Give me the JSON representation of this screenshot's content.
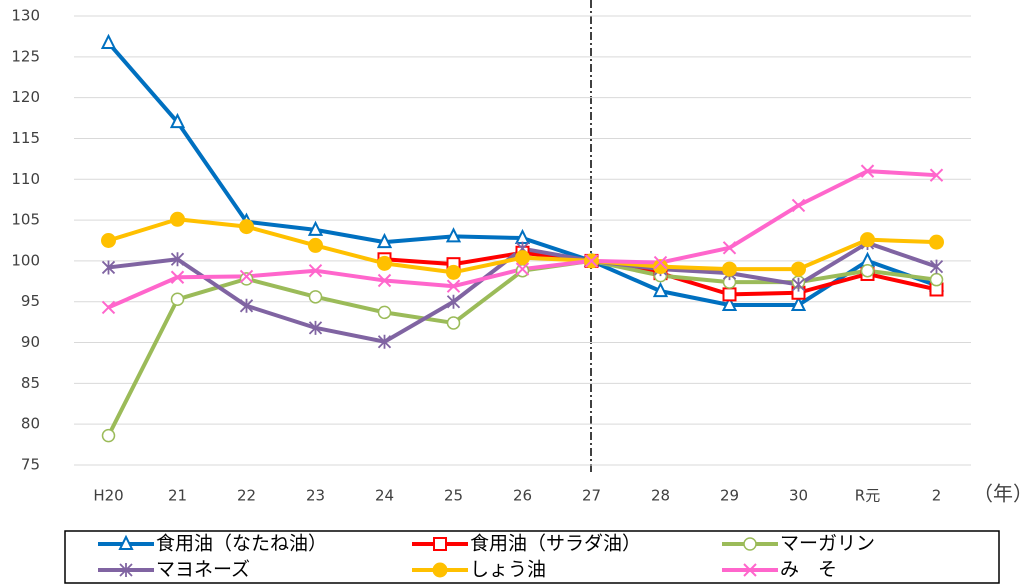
{
  "chart_data": {
    "type": "line",
    "x_label": "（年）",
    "categories": [
      "H20",
      "21",
      "22",
      "23",
      "24",
      "25",
      "26",
      "27",
      "28",
      "29",
      "30",
      "R元",
      "2"
    ],
    "ylim": [
      75,
      130
    ],
    "yticks": [
      75,
      80,
      85,
      90,
      95,
      100,
      105,
      110,
      115,
      120,
      125,
      130
    ],
    "grid": true,
    "series": [
      {
        "name": "食用油（なたね油）",
        "color": "#0070c0",
        "marker": "triangle",
        "values": [
          126.7,
          117,
          104.8,
          103.8,
          102.3,
          103,
          102.8,
          100,
          96.3,
          94.6,
          94.6,
          100,
          97
        ]
      },
      {
        "name": "食用油（サラダ油）",
        "color": "#ff0000",
        "marker": "square",
        "values": [
          null,
          null,
          null,
          null,
          100.2,
          99.6,
          101,
          100,
          98.5,
          95.9,
          96.1,
          98.4,
          96.5
        ]
      },
      {
        "name": "マーガリン",
        "color": "#9bbb59",
        "marker": "circle",
        "values": [
          78.6,
          95.3,
          97.8,
          95.6,
          93.7,
          92.4,
          98.8,
          100,
          98.2,
          97.4,
          97.4,
          98.8,
          97.7
        ]
      },
      {
        "name": "マヨネーズ",
        "color": "#8064a2",
        "marker": "star",
        "values": [
          99.2,
          100.2,
          94.5,
          91.8,
          90.1,
          95,
          101.5,
          100,
          99,
          98.5,
          97.1,
          102.2,
          99.3
        ]
      },
      {
        "name": "しょう油",
        "color": "#ffc000",
        "marker": "dot",
        "values": [
          102.5,
          105.1,
          104.2,
          101.9,
          99.7,
          98.6,
          100.4,
          100,
          99.3,
          99,
          99,
          102.6,
          102.3
        ]
      },
      {
        "name": "み　そ",
        "color": "#ff66cc",
        "marker": "cross",
        "values": [
          94.3,
          98,
          98.1,
          98.8,
          97.6,
          96.9,
          99,
          100,
          99.8,
          101.6,
          106.8,
          111,
          110.5
        ]
      }
    ]
  }
}
